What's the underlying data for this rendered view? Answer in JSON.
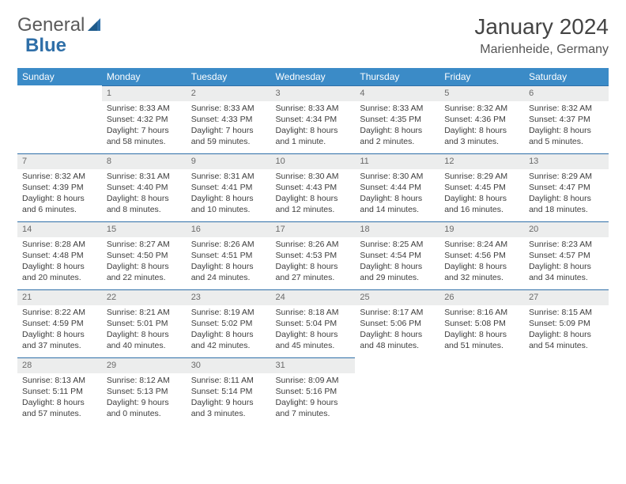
{
  "brand": {
    "part1": "General",
    "part2": "Blue"
  },
  "title": "January 2024",
  "location": "Marienheide, Germany",
  "headers": [
    "Sunday",
    "Monday",
    "Tuesday",
    "Wednesday",
    "Thursday",
    "Friday",
    "Saturday"
  ],
  "colors": {
    "header_bg": "#3b8bc7",
    "header_text": "#ffffff",
    "daynum_bg": "#eceded",
    "border": "#2f6fa8",
    "logo_text": "#5a5a5a",
    "logo_blue": "#2f6fa8"
  },
  "weeks": [
    [
      null,
      {
        "n": "1",
        "sunrise": "8:33 AM",
        "sunset": "4:32 PM",
        "daylight": "7 hours and 58 minutes."
      },
      {
        "n": "2",
        "sunrise": "8:33 AM",
        "sunset": "4:33 PM",
        "daylight": "7 hours and 59 minutes."
      },
      {
        "n": "3",
        "sunrise": "8:33 AM",
        "sunset": "4:34 PM",
        "daylight": "8 hours and 1 minute."
      },
      {
        "n": "4",
        "sunrise": "8:33 AM",
        "sunset": "4:35 PM",
        "daylight": "8 hours and 2 minutes."
      },
      {
        "n": "5",
        "sunrise": "8:32 AM",
        "sunset": "4:36 PM",
        "daylight": "8 hours and 3 minutes."
      },
      {
        "n": "6",
        "sunrise": "8:32 AM",
        "sunset": "4:37 PM",
        "daylight": "8 hours and 5 minutes."
      }
    ],
    [
      {
        "n": "7",
        "sunrise": "8:32 AM",
        "sunset": "4:39 PM",
        "daylight": "8 hours and 6 minutes."
      },
      {
        "n": "8",
        "sunrise": "8:31 AM",
        "sunset": "4:40 PM",
        "daylight": "8 hours and 8 minutes."
      },
      {
        "n": "9",
        "sunrise": "8:31 AM",
        "sunset": "4:41 PM",
        "daylight": "8 hours and 10 minutes."
      },
      {
        "n": "10",
        "sunrise": "8:30 AM",
        "sunset": "4:43 PM",
        "daylight": "8 hours and 12 minutes."
      },
      {
        "n": "11",
        "sunrise": "8:30 AM",
        "sunset": "4:44 PM",
        "daylight": "8 hours and 14 minutes."
      },
      {
        "n": "12",
        "sunrise": "8:29 AM",
        "sunset": "4:45 PM",
        "daylight": "8 hours and 16 minutes."
      },
      {
        "n": "13",
        "sunrise": "8:29 AM",
        "sunset": "4:47 PM",
        "daylight": "8 hours and 18 minutes."
      }
    ],
    [
      {
        "n": "14",
        "sunrise": "8:28 AM",
        "sunset": "4:48 PM",
        "daylight": "8 hours and 20 minutes."
      },
      {
        "n": "15",
        "sunrise": "8:27 AM",
        "sunset": "4:50 PM",
        "daylight": "8 hours and 22 minutes."
      },
      {
        "n": "16",
        "sunrise": "8:26 AM",
        "sunset": "4:51 PM",
        "daylight": "8 hours and 24 minutes."
      },
      {
        "n": "17",
        "sunrise": "8:26 AM",
        "sunset": "4:53 PM",
        "daylight": "8 hours and 27 minutes."
      },
      {
        "n": "18",
        "sunrise": "8:25 AM",
        "sunset": "4:54 PM",
        "daylight": "8 hours and 29 minutes."
      },
      {
        "n": "19",
        "sunrise": "8:24 AM",
        "sunset": "4:56 PM",
        "daylight": "8 hours and 32 minutes."
      },
      {
        "n": "20",
        "sunrise": "8:23 AM",
        "sunset": "4:57 PM",
        "daylight": "8 hours and 34 minutes."
      }
    ],
    [
      {
        "n": "21",
        "sunrise": "8:22 AM",
        "sunset": "4:59 PM",
        "daylight": "8 hours and 37 minutes."
      },
      {
        "n": "22",
        "sunrise": "8:21 AM",
        "sunset": "5:01 PM",
        "daylight": "8 hours and 40 minutes."
      },
      {
        "n": "23",
        "sunrise": "8:19 AM",
        "sunset": "5:02 PM",
        "daylight": "8 hours and 42 minutes."
      },
      {
        "n": "24",
        "sunrise": "8:18 AM",
        "sunset": "5:04 PM",
        "daylight": "8 hours and 45 minutes."
      },
      {
        "n": "25",
        "sunrise": "8:17 AM",
        "sunset": "5:06 PM",
        "daylight": "8 hours and 48 minutes."
      },
      {
        "n": "26",
        "sunrise": "8:16 AM",
        "sunset": "5:08 PM",
        "daylight": "8 hours and 51 minutes."
      },
      {
        "n": "27",
        "sunrise": "8:15 AM",
        "sunset": "5:09 PM",
        "daylight": "8 hours and 54 minutes."
      }
    ],
    [
      {
        "n": "28",
        "sunrise": "8:13 AM",
        "sunset": "5:11 PM",
        "daylight": "8 hours and 57 minutes."
      },
      {
        "n": "29",
        "sunrise": "8:12 AM",
        "sunset": "5:13 PM",
        "daylight": "9 hours and 0 minutes."
      },
      {
        "n": "30",
        "sunrise": "8:11 AM",
        "sunset": "5:14 PM",
        "daylight": "9 hours and 3 minutes."
      },
      {
        "n": "31",
        "sunrise": "8:09 AM",
        "sunset": "5:16 PM",
        "daylight": "9 hours and 7 minutes."
      },
      null,
      null,
      null
    ]
  ],
  "labels": {
    "sunrise": "Sunrise:",
    "sunset": "Sunset:",
    "daylight": "Daylight:"
  }
}
